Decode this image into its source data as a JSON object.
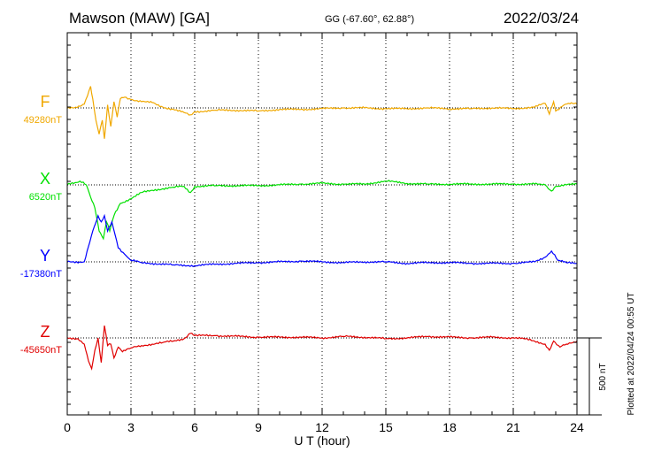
{
  "header": {
    "station": "Mawson (MAW)  [GA]",
    "coords": "GG (-67.60°,  62.88°)",
    "date": "2022/03/24"
  },
  "chart_data": {
    "type": "line",
    "title": "Mawson (MAW)  [GA]",
    "xlabel": "U T (hour)",
    "ylabel": "",
    "xlim": [
      0,
      24
    ],
    "x_ticks": [
      "0",
      "3",
      "6",
      "9",
      "12",
      "15",
      "18",
      "21",
      "24"
    ],
    "y_scale_label": "500 nT",
    "y_scale_nT": 500,
    "grid": true,
    "series": [
      {
        "name": "F",
        "baseline_label": "49280nT",
        "baseline_nT": 49280,
        "color": "#f0a800",
        "points": [
          [
            0,
            0
          ],
          [
            0.4,
            5
          ],
          [
            0.8,
            25
          ],
          [
            1.1,
            140
          ],
          [
            1.2,
            60
          ],
          [
            1.35,
            -80
          ],
          [
            1.5,
            -170
          ],
          [
            1.65,
            -80
          ],
          [
            1.75,
            -200
          ],
          [
            1.9,
            20
          ],
          [
            2.05,
            -120
          ],
          [
            2.2,
            40
          ],
          [
            2.35,
            -60
          ],
          [
            2.5,
            60
          ],
          [
            2.7,
            70
          ],
          [
            3,
            55
          ],
          [
            3.5,
            40
          ],
          [
            4,
            35
          ],
          [
            4.5,
            5
          ],
          [
            5,
            -10
          ],
          [
            5.5,
            -30
          ],
          [
            5.8,
            -45
          ],
          [
            6,
            -25
          ],
          [
            7,
            -15
          ],
          [
            8,
            -15
          ],
          [
            9,
            -20
          ],
          [
            10,
            -10
          ],
          [
            11,
            -10
          ],
          [
            12,
            -5
          ],
          [
            13,
            0
          ],
          [
            14,
            0
          ],
          [
            15,
            -5
          ],
          [
            16,
            -5
          ],
          [
            17,
            0
          ],
          [
            18,
            -5
          ],
          [
            19,
            -5
          ],
          [
            20,
            0
          ],
          [
            21,
            -5
          ],
          [
            22,
            5
          ],
          [
            22.5,
            30
          ],
          [
            22.7,
            -40
          ],
          [
            22.9,
            40
          ],
          [
            23,
            -20
          ],
          [
            23.3,
            10
          ],
          [
            23.6,
            30
          ],
          [
            24,
            25
          ]
        ]
      },
      {
        "name": "X",
        "baseline_label": "6520nT",
        "baseline_nT": 6520,
        "color": "#00e000",
        "points": [
          [
            0,
            0
          ],
          [
            0.6,
            25
          ],
          [
            0.9,
            0
          ],
          [
            1.1,
            -80
          ],
          [
            1.3,
            -150
          ],
          [
            1.5,
            -300
          ],
          [
            1.7,
            -350
          ],
          [
            1.85,
            -240
          ],
          [
            2,
            -300
          ],
          [
            2.2,
            -200
          ],
          [
            2.5,
            -120
          ],
          [
            3,
            -90
          ],
          [
            3.5,
            -50
          ],
          [
            4,
            -35
          ],
          [
            4.5,
            -25
          ],
          [
            5,
            -15
          ],
          [
            5.5,
            -10
          ],
          [
            5.8,
            -50
          ],
          [
            6,
            -10
          ],
          [
            7,
            -5
          ],
          [
            8,
            -5
          ],
          [
            9,
            -5
          ],
          [
            10,
            0
          ],
          [
            11,
            5
          ],
          [
            12,
            10
          ],
          [
            13,
            5
          ],
          [
            14,
            5
          ],
          [
            15,
            25
          ],
          [
            16,
            10
          ],
          [
            17,
            5
          ],
          [
            18,
            5
          ],
          [
            19,
            5
          ],
          [
            20,
            5
          ],
          [
            21,
            5
          ],
          [
            22,
            5
          ],
          [
            22.5,
            0
          ],
          [
            22.8,
            -40
          ],
          [
            23,
            -10
          ],
          [
            23.5,
            0
          ],
          [
            24,
            5
          ]
        ]
      },
      {
        "name": "Y",
        "baseline_label": "-17380nT",
        "baseline_nT": -17380,
        "color": "#0000ff",
        "points": [
          [
            0,
            0
          ],
          [
            0.8,
            0
          ],
          [
            1.0,
            100
          ],
          [
            1.2,
            200
          ],
          [
            1.45,
            300
          ],
          [
            1.6,
            260
          ],
          [
            1.75,
            300
          ],
          [
            1.9,
            200
          ],
          [
            2.1,
            260
          ],
          [
            2.4,
            90
          ],
          [
            2.7,
            50
          ],
          [
            3,
            10
          ],
          [
            3.5,
            -5
          ],
          [
            4,
            -10
          ],
          [
            5,
            -20
          ],
          [
            6,
            -25
          ],
          [
            7,
            -15
          ],
          [
            8,
            -10
          ],
          [
            9,
            -5
          ],
          [
            10,
            0
          ],
          [
            11,
            5
          ],
          [
            12,
            0
          ],
          [
            13,
            -5
          ],
          [
            14,
            0
          ],
          [
            15,
            0
          ],
          [
            16,
            -10
          ],
          [
            17,
            -5
          ],
          [
            18,
            -5
          ],
          [
            19,
            -10
          ],
          [
            20,
            -10
          ],
          [
            21,
            -10
          ],
          [
            22,
            0
          ],
          [
            22.5,
            30
          ],
          [
            22.8,
            70
          ],
          [
            23.1,
            10
          ],
          [
            23.5,
            -5
          ],
          [
            24,
            -10
          ]
        ]
      },
      {
        "name": "Z",
        "baseline_label": "-45650nT",
        "baseline_nT": -45650,
        "color": "#e00000",
        "points": [
          [
            0,
            0
          ],
          [
            0.5,
            -5
          ],
          [
            0.8,
            -40
          ],
          [
            1.0,
            -150
          ],
          [
            1.15,
            -200
          ],
          [
            1.3,
            -80
          ],
          [
            1.45,
            0
          ],
          [
            1.6,
            -160
          ],
          [
            1.75,
            80
          ],
          [
            1.9,
            -50
          ],
          [
            2.05,
            -40
          ],
          [
            2.2,
            -130
          ],
          [
            2.4,
            -60
          ],
          [
            2.6,
            -90
          ],
          [
            3,
            -65
          ],
          [
            3.5,
            -50
          ],
          [
            4,
            -40
          ],
          [
            4.5,
            -30
          ],
          [
            5,
            -20
          ],
          [
            5.5,
            -5
          ],
          [
            5.8,
            30
          ],
          [
            6,
            15
          ],
          [
            7,
            15
          ],
          [
            8,
            10
          ],
          [
            9,
            5
          ],
          [
            10,
            5
          ],
          [
            11,
            5
          ],
          [
            12,
            0
          ],
          [
            13,
            10
          ],
          [
            14,
            5
          ],
          [
            15,
            -5
          ],
          [
            16,
            0
          ],
          [
            17,
            10
          ],
          [
            18,
            5
          ],
          [
            19,
            0
          ],
          [
            20,
            5
          ],
          [
            21,
            0
          ],
          [
            21.5,
            -5
          ],
          [
            22,
            -20
          ],
          [
            22.5,
            -40
          ],
          [
            22.7,
            -80
          ],
          [
            22.9,
            -20
          ],
          [
            23.2,
            -60
          ],
          [
            23.5,
            -40
          ],
          [
            24,
            -20
          ]
        ]
      }
    ]
  },
  "footer": {
    "plotted_note": "Plotted at 2022/04/24 00:55 UT"
  }
}
